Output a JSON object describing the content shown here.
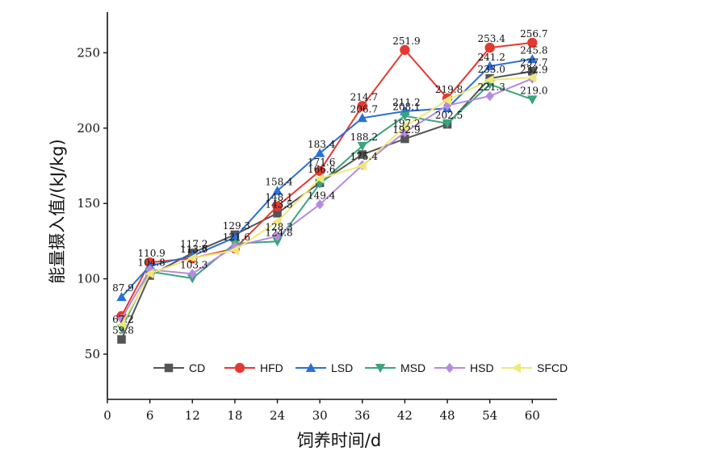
{
  "chart_data": {
    "type": "line",
    "title": "",
    "xlabel": "饲养时间/d",
    "ylabel": "能量摄入值/(kJ/kg)",
    "x": [
      0,
      6,
      12,
      18,
      24,
      30,
      36,
      42,
      48,
      54,
      60
    ],
    "xticks": [
      "0",
      "6",
      "12",
      "18",
      "24",
      "30",
      "36",
      "42",
      "48",
      "54",
      "60"
    ],
    "yticks": [
      "50",
      "100",
      "150",
      "200",
      "250"
    ],
    "xlim": [
      0,
      63.5
    ],
    "ylim": [
      20,
      277
    ],
    "grid": false,
    "legend_position": "bottom",
    "series": [
      {
        "name": "CD",
        "color": "#555555",
        "marker": "square",
        "x": [
          2,
          6,
          12,
          18,
          24,
          30,
          36,
          42,
          48,
          54,
          60
        ],
        "values": [
          59.8,
          102.2,
          117.2,
          129.3,
          143.5,
          163.7,
          182.5,
          192.9,
          202.5,
          233.0,
          237.7
        ],
        "labels": [
          "59.8",
          "",
          "117.2",
          "129.3",
          "143.5",
          "",
          "",
          "192.9",
          "202.5",
          "233.0",
          "237.7"
        ]
      },
      {
        "name": "HFD",
        "color": "#e23a32",
        "marker": "circle",
        "x": [
          2,
          6,
          12,
          18,
          24,
          30,
          36,
          42,
          48,
          54,
          60
        ],
        "values": [
          75.3,
          110.9,
          113.6,
          120.2,
          148.1,
          171.6,
          214.7,
          251.9,
          219.8,
          253.4,
          256.7
        ],
        "labels": [
          "",
          "110.9",
          "113.6",
          "",
          "148.1",
          "171.6",
          "214.7",
          "251.9",
          "219.8",
          "253.4",
          "256.7"
        ]
      },
      {
        "name": "LSD",
        "color": "#2a6fd6",
        "marker": "triangle-up",
        "x": [
          2,
          6,
          12,
          18,
          24,
          30,
          36,
          42,
          48,
          54,
          60
        ],
        "values": [
          87.9,
          108.6,
          115.2,
          127.4,
          158.4,
          183.4,
          206.7,
          211.2,
          213.2,
          241.2,
          245.8
        ],
        "labels": [
          "87.9",
          "",
          "",
          "",
          "158.4",
          "183.4",
          "206.7",
          "211.2",
          "",
          "241.2",
          "245.8"
        ]
      },
      {
        "name": "MSD",
        "color": "#3aa57a",
        "marker": "triangle-down",
        "x": [
          2,
          6,
          12,
          18,
          24,
          30,
          36,
          42,
          48,
          54,
          60
        ],
        "values": [
          67.2,
          104.8,
          100.3,
          123.4,
          124.8,
          163.1,
          188.2,
          208.1,
          203.2,
          229.1,
          219.0
        ],
        "labels": [
          "67.2",
          "104.8",
          "",
          "",
          "124.8",
          "",
          "188.2",
          "208.1",
          "",
          "",
          "219.0"
        ]
      },
      {
        "name": "HSD",
        "color": "#b58be0",
        "marker": "diamond",
        "x": [
          2,
          6,
          12,
          18,
          24,
          30,
          36,
          42,
          48,
          54,
          60
        ],
        "values": [
          73.4,
          106.1,
          103.3,
          121.6,
          128.3,
          149.4,
          175.4,
          197.2,
          215.0,
          221.3,
          232.9
        ],
        "labels": [
          "",
          "",
          "103.3",
          "121.6",
          "128.3",
          "149.4",
          "175.4",
          "197.2",
          "",
          "221.3",
          "232.9"
        ]
      },
      {
        "name": "SFCD",
        "color": "#efe878",
        "marker": "triangle-left",
        "x": [
          2,
          6,
          12,
          18,
          24,
          30,
          36,
          42,
          48,
          54,
          60
        ],
        "values": [
          69.5,
          103.4,
          113.7,
          119.0,
          138.0,
          166.6,
          174.9,
          201.0,
          218.6,
          232.0,
          233.5
        ],
        "labels": [
          "",
          "",
          "113.7",
          "",
          "",
          "166.6",
          "",
          "",
          "",
          "",
          ""
        ]
      }
    ]
  }
}
